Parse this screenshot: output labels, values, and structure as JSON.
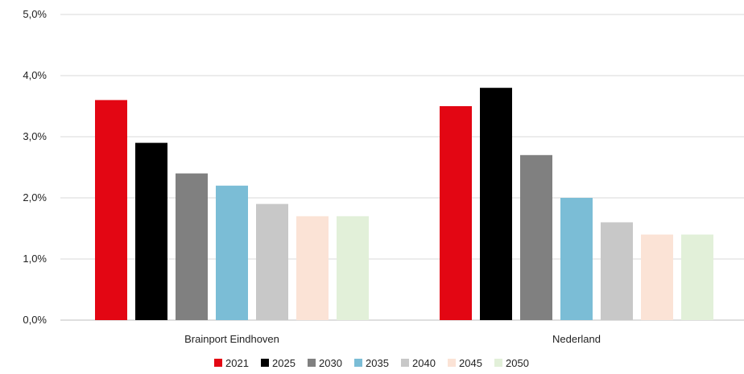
{
  "chart_data": {
    "type": "bar",
    "categories": [
      "Brainport Eindhoven",
      "Nederland"
    ],
    "series": [
      {
        "name": "2021",
        "color": "#e30613",
        "values": [
          3.6,
          3.5
        ]
      },
      {
        "name": "2025",
        "color": "#000000",
        "values": [
          2.9,
          3.8
        ]
      },
      {
        "name": "2030",
        "color": "#808080",
        "values": [
          2.4,
          2.7
        ]
      },
      {
        "name": "2035",
        "color": "#7bbdd6",
        "values": [
          2.2,
          2.0
        ]
      },
      {
        "name": "2040",
        "color": "#c8c8c8",
        "values": [
          1.9,
          1.6
        ]
      },
      {
        "name": "2045",
        "color": "#fbe3d6",
        "values": [
          1.7,
          1.4
        ]
      },
      {
        "name": "2050",
        "color": "#e2f0d9",
        "values": [
          1.7,
          1.4
        ]
      }
    ],
    "ylim": [
      0,
      5
    ],
    "yticks": [
      "0,0%",
      "1,0%",
      "2,0%",
      "3,0%",
      "4,0%",
      "5,0%"
    ],
    "grid": true,
    "legend_position": "bottom"
  }
}
